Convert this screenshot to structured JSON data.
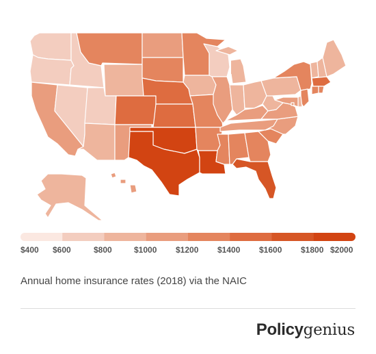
{
  "legend": {
    "colors": [
      "#fbe8e1",
      "#f3cdbf",
      "#eeb59d",
      "#e99d7e",
      "#e4855e",
      "#de6c40",
      "#d65625",
      "#d24412"
    ],
    "ticks": [
      "$400",
      "$600",
      "$800",
      "$1000",
      "$1200",
      "$1400",
      "$1600",
      "$1800",
      "$2000"
    ]
  },
  "caption": "Annual home insurance rates (2018) via the NAIC",
  "brand": {
    "bold": "Policy",
    "serif": "genius"
  },
  "map_data": {
    "type": "choropleth",
    "region": "United States",
    "value_bins": [
      400,
      600,
      800,
      1000,
      1200,
      1400,
      1600,
      1800,
      2000
    ],
    "states": {
      "WA": 1,
      "OR": 1,
      "CA": 3,
      "NV": 1,
      "ID": 1,
      "MT": 4,
      "WY": 2,
      "UT": 1,
      "AZ": 2,
      "CO": 5,
      "NM": 3,
      "ND": 3,
      "SD": 4,
      "NE": 5,
      "KS": 5,
      "OK": 7,
      "TX": 7,
      "MN": 4,
      "IA": 2,
      "MO": 4,
      "AR": 4,
      "LA": 7,
      "WI": 1,
      "IL": 3,
      "MI": 2,
      "IN": 2,
      "OH": 2,
      "KY": 3,
      "TN": 3,
      "MS": 4,
      "AL": 4,
      "GA": 4,
      "FL": 6,
      "SC": 4,
      "NC": 3,
      "VA": 3,
      "WV": 2,
      "PA": 2,
      "NY": 4,
      "VT": 2,
      "NH": 2,
      "ME": 2,
      "MA": 5,
      "CT": 4,
      "RI": 4,
      "NJ": 4,
      "DE": 2,
      "MD": 3,
      "DC": 3,
      "AK": 2,
      "HI": 3
    },
    "colors": [
      "#fbe8e1",
      "#f3cdbf",
      "#eeb59d",
      "#e99d7e",
      "#e4855e",
      "#de6c40",
      "#d65625",
      "#d24412"
    ]
  }
}
